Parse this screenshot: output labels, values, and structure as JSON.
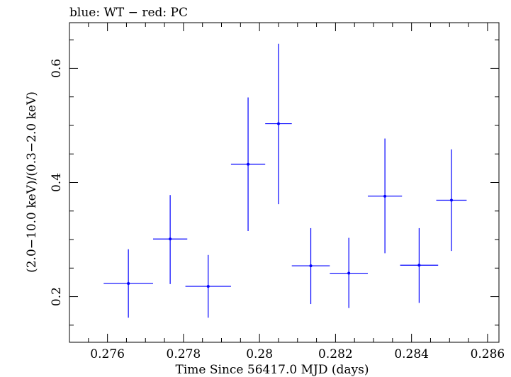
{
  "chart_data": {
    "type": "scatter",
    "title": "blue: WT − red: PC",
    "xlabel": "Time Since 56417.0 MJD (days)",
    "ylabel": "(2.0−10.0 keV)/(0.3−2.0 keV)",
    "xlim": [
      0.275,
      0.2863
    ],
    "ylim": [
      0.12,
      0.68
    ],
    "x_ticks": [
      {
        "value": 0.276,
        "label": "0.276"
      },
      {
        "value": 0.278,
        "label": "0.278"
      },
      {
        "value": 0.28,
        "label": "0.28"
      },
      {
        "value": 0.282,
        "label": "0.282"
      },
      {
        "value": 0.284,
        "label": "0.284"
      },
      {
        "value": 0.286,
        "label": "0.286"
      }
    ],
    "y_ticks": [
      {
        "value": 0.2,
        "label": "0.2"
      },
      {
        "value": 0.4,
        "label": "0.4"
      },
      {
        "value": 0.6,
        "label": "0.6"
      }
    ],
    "series": [
      {
        "name": "WT",
        "color": "#0000ff",
        "points": [
          {
            "x": 0.27655,
            "xerr": 0.00065,
            "y": 0.223,
            "ylo": 0.163,
            "yhi": 0.283
          },
          {
            "x": 0.27765,
            "xerr": 0.00045,
            "y": 0.301,
            "ylo": 0.222,
            "yhi": 0.378
          },
          {
            "x": 0.27865,
            "xerr": 0.0006,
            "y": 0.218,
            "ylo": 0.163,
            "yhi": 0.273
          },
          {
            "x": 0.2797,
            "xerr": 0.00045,
            "y": 0.432,
            "ylo": 0.315,
            "yhi": 0.549
          },
          {
            "x": 0.2805,
            "xerr": 0.00035,
            "y": 0.503,
            "ylo": 0.362,
            "yhi": 0.643
          },
          {
            "x": 0.28135,
            "xerr": 0.0005,
            "y": 0.254,
            "ylo": 0.187,
            "yhi": 0.32
          },
          {
            "x": 0.28235,
            "xerr": 0.0005,
            "y": 0.241,
            "ylo": 0.18,
            "yhi": 0.303
          },
          {
            "x": 0.2833,
            "xerr": 0.00045,
            "y": 0.376,
            "ylo": 0.276,
            "yhi": 0.477
          },
          {
            "x": 0.2842,
            "xerr": 0.0005,
            "y": 0.255,
            "ylo": 0.189,
            "yhi": 0.32
          },
          {
            "x": 0.28505,
            "xerr": 0.0004,
            "y": 0.369,
            "ylo": 0.28,
            "yhi": 0.458
          }
        ]
      }
    ]
  }
}
